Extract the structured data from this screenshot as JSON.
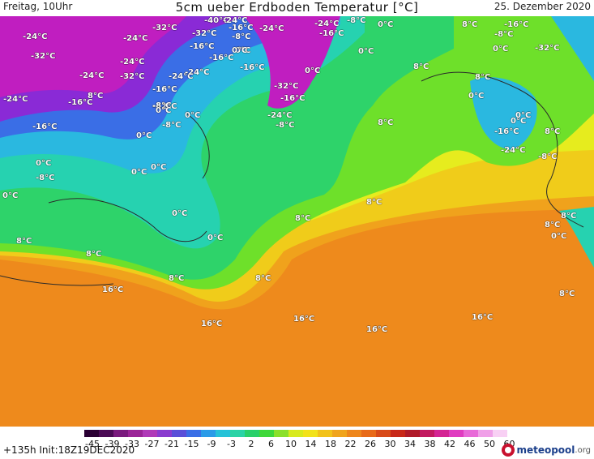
{
  "header": {
    "day_time": "Freitag, 10Uhr",
    "title": "5cm ueber Erdboden Temperatur [°C]",
    "date": "25. Dezember 2020"
  },
  "footer": {
    "run_info": "+135h  Init:18Z19DEC2020",
    "logo_text": "meteopool",
    "logo_tld": ".org"
  },
  "legend": {
    "ticks": [
      "-45",
      "-39",
      "-33",
      "-27",
      "-21",
      "-15",
      "-9",
      "-3",
      "2",
      "6",
      "10",
      "14",
      "18",
      "22",
      "26",
      "30",
      "34",
      "38",
      "42",
      "46",
      "50",
      "60"
    ],
    "colors": [
      "#2a0033",
      "#4b0b55",
      "#7a1a7e",
      "#9b2598",
      "#b03ab8",
      "#8a3ccf",
      "#5a4fd8",
      "#3a6ee6",
      "#2a9be8",
      "#26c2d8",
      "#2bd3a6",
      "#29d06a",
      "#3fd83a",
      "#8ae02a",
      "#d8ea1e",
      "#f2e21a",
      "#f2c21a",
      "#f0a41c",
      "#ee861c",
      "#e86a18",
      "#d84a18",
      "#c82818",
      "#b01a28",
      "#c21a60",
      "#d42494",
      "#e03cc0",
      "#e86ad8",
      "#f0a0e8",
      "#f8d0f4"
    ]
  },
  "map": {
    "colors": {
      "deep_cold": "#c01ec0",
      "cold": "#8a2ad6",
      "cool": "#3a6ee6",
      "chilly": "#2ab8e0",
      "near_zero": "#26d2b0",
      "mild": "#2ed36a",
      "lime": "#6ee02a",
      "yellow": "#e6ec1e",
      "gold": "#f0cc1a",
      "orange": "#f0a21c",
      "deep_orange": "#ee8a1c"
    },
    "labels": [
      {
        "text": "-24°C"
      },
      {
        "text": "-32°C"
      },
      {
        "text": "-24°C"
      },
      {
        "text": "-32°C"
      },
      {
        "text": "-24°C"
      },
      {
        "text": "-32°C"
      },
      {
        "text": "-40°C"
      },
      {
        "text": "-24°C"
      },
      {
        "text": "-32°C"
      },
      {
        "text": "-16°C"
      },
      {
        "text": "-8°C"
      },
      {
        "text": "-24°C"
      },
      {
        "text": "-32°C"
      },
      {
        "text": "-16°C"
      },
      {
        "text": "0°C"
      },
      {
        "text": "-24°C"
      },
      {
        "text": "-8°C"
      },
      {
        "text": "-24°C"
      },
      {
        "text": "-16°C"
      },
      {
        "text": "0°C"
      },
      {
        "text": "8°C"
      },
      {
        "text": "-16°C"
      },
      {
        "text": "-8°C"
      },
      {
        "text": "0°C"
      },
      {
        "text": "-32°C"
      },
      {
        "text": "-24°C"
      },
      {
        "text": "-24°C"
      },
      {
        "text": "-16°C"
      },
      {
        "text": "8°C"
      },
      {
        "text": "-24°C"
      },
      {
        "text": "-16°C"
      },
      {
        "text": "-16°C"
      },
      {
        "text": "-8°C"
      },
      {
        "text": "0°C"
      },
      {
        "text": "-16°C"
      },
      {
        "text": "-32°C"
      },
      {
        "text": "-16°C"
      },
      {
        "text": "-24°C"
      },
      {
        "text": "-16°C"
      },
      {
        "text": "-8°C"
      },
      {
        "text": "8°C"
      },
      {
        "text": "0°C"
      },
      {
        "text": "0°C"
      },
      {
        "text": "0°C"
      },
      {
        "text": "0°C"
      },
      {
        "text": "-8°C"
      },
      {
        "text": "0°C"
      },
      {
        "text": "0°C"
      },
      {
        "text": "0°C"
      },
      {
        "text": "8°C"
      },
      {
        "text": "8°C"
      },
      {
        "text": "8°C"
      },
      {
        "text": "8°C"
      },
      {
        "text": "0°C"
      },
      {
        "text": "0°C"
      },
      {
        "text": "8°C"
      },
      {
        "text": "8°C"
      },
      {
        "text": "0°C"
      },
      {
        "text": "0°C"
      },
      {
        "text": "16°C"
      },
      {
        "text": "8°C"
      },
      {
        "text": "16°C"
      },
      {
        "text": "16°C"
      },
      {
        "text": "16°C"
      },
      {
        "text": "16°C"
      },
      {
        "text": "8°C"
      },
      {
        "text": "8°C"
      },
      {
        "text": "0°C"
      },
      {
        "text": "8°C"
      },
      {
        "text": "-8°C"
      },
      {
        "text": "0°C"
      },
      {
        "text": "8°C"
      },
      {
        "text": "8°C"
      },
      {
        "text": "0°C"
      },
      {
        "text": "0°C"
      },
      {
        "text": "-16°C"
      },
      {
        "text": "-24°C"
      },
      {
        "text": "-8°C"
      }
    ]
  }
}
